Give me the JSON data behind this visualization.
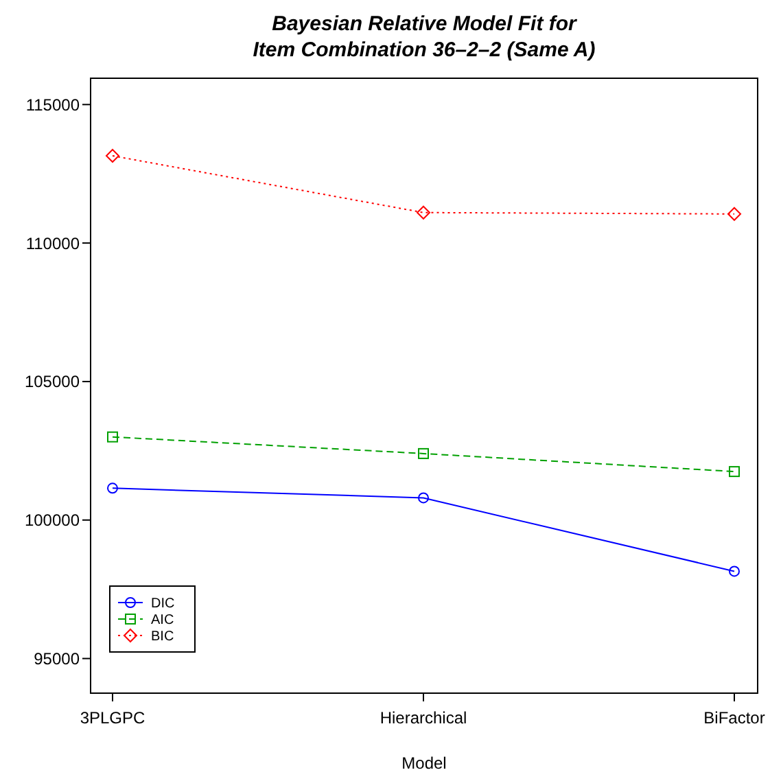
{
  "chart_data": {
    "type": "line",
    "title": "Bayesian Relative Model Fit for\nItem Combination 36–2–2 (Same A)",
    "xlabel": "Model",
    "categories": [
      "3PLGPC",
      "Hierarchical",
      "BiFactor"
    ],
    "series": [
      {
        "name": "DIC",
        "color": "#0000ff",
        "marker": "circle",
        "line_style": "solid",
        "values": [
          101150,
          100800,
          98150
        ]
      },
      {
        "name": "AIC",
        "color": "#00a000",
        "marker": "square",
        "line_style": "dashed",
        "values": [
          103000,
          102400,
          101750
        ]
      },
      {
        "name": "BIC",
        "color": "#ff0000",
        "marker": "diamond",
        "line_style": "dotted",
        "values": [
          113150,
          111100,
          111050
        ]
      }
    ],
    "ylim": [
      93750,
      115950
    ],
    "yticks": [
      95000,
      100000,
      105000,
      110000,
      115000
    ],
    "grid": false,
    "legend": "bottom left"
  }
}
